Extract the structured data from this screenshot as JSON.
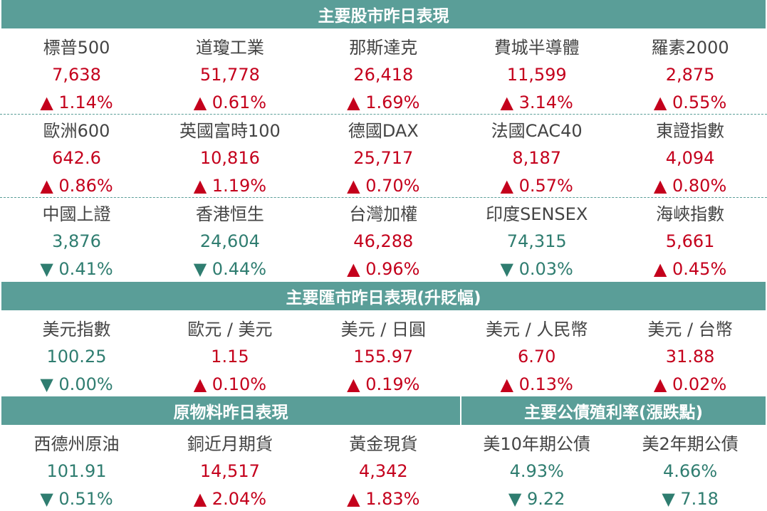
{
  "stocks": {
    "title": "主要股市昨日表現",
    "items": [
      {
        "name": "標普500",
        "value": "7,638",
        "change": "▲ 1.14%"
      },
      {
        "name": "道瓊工業",
        "value": "51,778",
        "change": "▲ 0.61%"
      },
      {
        "name": "那斯達克",
        "value": "26,418",
        "change": "▲ 1.69%"
      },
      {
        "name": "費城半導體",
        "value": "11,599",
        "change": "▲ 3.14%"
      },
      {
        "name": "羅素2000",
        "value": "2,875",
        "change": "▲ 0.55%"
      },
      {
        "name": "歐洲600",
        "value": "642.6",
        "change": "▲ 0.86%"
      },
      {
        "name": "英國富時100",
        "value": "10,816",
        "change": "▲ 1.19%"
      },
      {
        "name": "德國DAX",
        "value": "25,717",
        "change": "▲ 0.70%"
      },
      {
        "name": "法國CAC40",
        "value": "8,187",
        "change": "▲ 0.57%"
      },
      {
        "name": "東證指數",
        "value": "4,094",
        "change": "▲ 0.80%"
      },
      {
        "name": "中國上證",
        "value": "3,876",
        "change": "▼ 0.41%"
      },
      {
        "name": "香港恒生",
        "value": "24,604",
        "change": "▼ 0.44%"
      },
      {
        "name": "台灣加權",
        "value": "46,288",
        "change": "▲ 0.96%"
      },
      {
        "name": "印度SENSEX",
        "value": "74,315",
        "change": "▼ 0.03%"
      },
      {
        "name": "海峽指數",
        "value": "5,661",
        "change": "▲ 0.45%"
      }
    ]
  },
  "fx": {
    "title": "主要匯市昨日表現(升貶幅)",
    "items": [
      {
        "name": "美元指數",
        "value": "100.25",
        "change": "▼ 0.00%"
      },
      {
        "name": "歐元 / 美元",
        "value": "1.15",
        "change": "▲ 0.10%"
      },
      {
        "name": "美元 / 日圓",
        "value": "155.97",
        "change": "▲ 0.19%"
      },
      {
        "name": "美元 / 人民幣",
        "value": "6.70",
        "change": "▲ 0.13%"
      },
      {
        "name": "美元 / 台幣",
        "value": "31.88",
        "change": "▲ 0.02%"
      }
    ]
  },
  "commodities": {
    "title": "原物料昨日表現",
    "items": [
      {
        "name": "西德州原油",
        "value": "101.91",
        "change": "▼ 0.51%"
      },
      {
        "name": "銅近月期貨",
        "value": "14,517",
        "change": "▲ 2.04%"
      },
      {
        "name": "黃金現貨",
        "value": "4,342",
        "change": "▲ 1.83%"
      }
    ]
  },
  "bonds": {
    "title": "主要公債殖利率(漲跌點)",
    "items": [
      {
        "name": "美10年期公債",
        "value": "4.93%",
        "change": "▼ 9.22"
      },
      {
        "name": "美2年期公債",
        "value": "4.66%",
        "change": "▼ 7.18"
      }
    ]
  }
}
